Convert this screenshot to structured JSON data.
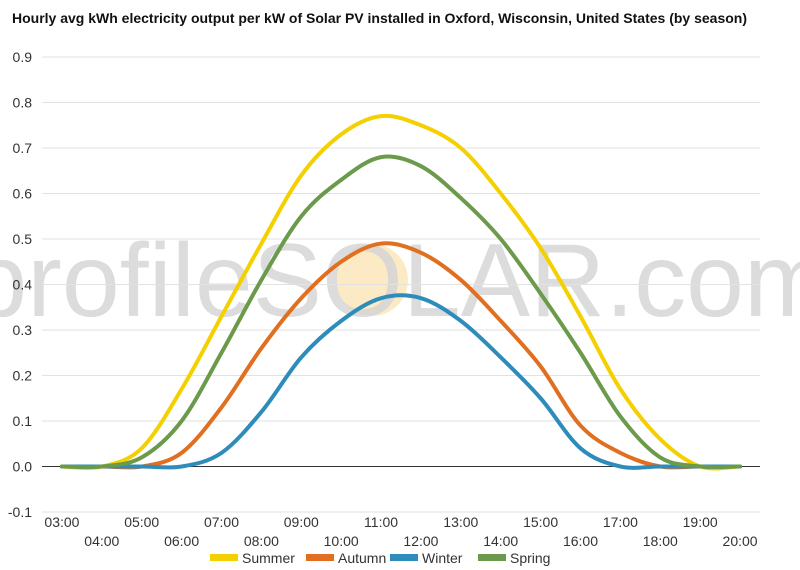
{
  "chart_data": {
    "type": "line",
    "title": "Hourly avg kWh electricity output per kW of Solar PV installed in Oxford, Wisconsin, United States (by season)",
    "xlabel": "",
    "ylabel": "",
    "ylim": [
      -0.1,
      0.9
    ],
    "y_ticks": [
      "-0.1",
      "0.0",
      "0.1",
      "0.2",
      "0.3",
      "0.4",
      "0.5",
      "0.6",
      "0.7",
      "0.8",
      "0.9"
    ],
    "x_ticks": [
      "03:00",
      "04:00",
      "05:00",
      "06:00",
      "07:00",
      "08:00",
      "09:00",
      "10:00",
      "11:00",
      "12:00",
      "13:00",
      "14:00",
      "15:00",
      "16:00",
      "17:00",
      "18:00",
      "19:00",
      "20:00"
    ],
    "x": [
      3,
      4,
      5,
      6,
      7,
      8,
      9,
      10,
      11,
      12,
      13,
      14,
      15,
      16,
      17,
      18,
      19,
      20
    ],
    "grid": true,
    "legend_position": "bottom",
    "watermark": "profileSOLAR.com",
    "series": [
      {
        "name": "Summer",
        "color": "#f5d000",
        "values": [
          0.0,
          0.0,
          0.04,
          0.17,
          0.33,
          0.49,
          0.64,
          0.73,
          0.77,
          0.75,
          0.7,
          0.6,
          0.48,
          0.33,
          0.17,
          0.06,
          0.0,
          0.0
        ]
      },
      {
        "name": "Autumn",
        "color": "#e07020",
        "values": [
          0.0,
          0.0,
          0.0,
          0.03,
          0.13,
          0.26,
          0.37,
          0.45,
          0.49,
          0.47,
          0.41,
          0.32,
          0.22,
          0.09,
          0.03,
          0.0,
          0.0,
          0.0
        ]
      },
      {
        "name": "Winter",
        "color": "#2e8cba",
        "values": [
          0.0,
          0.0,
          0.0,
          0.0,
          0.03,
          0.12,
          0.24,
          0.32,
          0.37,
          0.37,
          0.32,
          0.24,
          0.15,
          0.04,
          0.0,
          0.0,
          0.0,
          0.0
        ]
      },
      {
        "name": "Spring",
        "color": "#6b9a4a",
        "values": [
          0.0,
          0.0,
          0.02,
          0.1,
          0.25,
          0.41,
          0.55,
          0.63,
          0.68,
          0.66,
          0.59,
          0.5,
          0.38,
          0.25,
          0.11,
          0.02,
          0.0,
          0.0
        ]
      }
    ]
  }
}
